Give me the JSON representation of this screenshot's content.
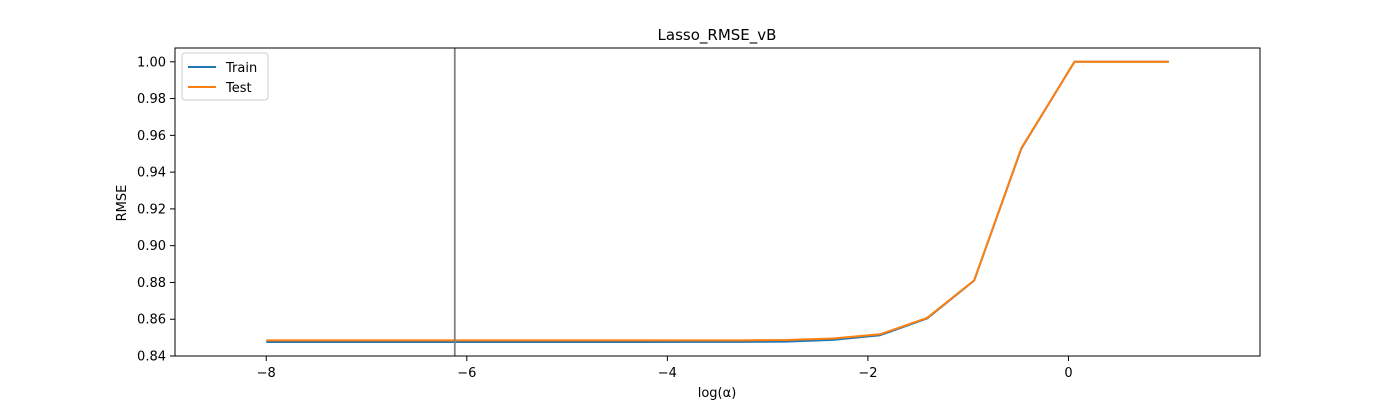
{
  "chart_data": {
    "type": "line",
    "title": "Lasso_RMSE_vB",
    "xlabel": "log(α)",
    "ylabel": "RMSE",
    "xlim": [
      -8.91,
      1.91
    ],
    "ylim": [
      0.84,
      1.0075
    ],
    "xticks": [
      -8,
      -6,
      -4,
      -2,
      0
    ],
    "xtick_labels": [
      "−8",
      "−6",
      "−4",
      "−2",
      "0"
    ],
    "yticks": [
      0.84,
      0.86,
      0.88,
      0.9,
      0.92,
      0.94,
      0.96,
      0.98,
      1.0
    ],
    "ytick_labels": [
      "0.84",
      "0.86",
      "0.88",
      "0.90",
      "0.92",
      "0.94",
      "0.96",
      "0.98",
      "1.00"
    ],
    "grid": false,
    "legend_position": "top-left",
    "vline": {
      "x": -6.12,
      "color": "#808080"
    },
    "x": [
      -8.0,
      -7.53,
      -7.06,
      -6.59,
      -6.12,
      -5.65,
      -5.18,
      -4.71,
      -4.24,
      -3.77,
      -3.29,
      -2.82,
      -2.35,
      -1.88,
      -1.41,
      -0.94,
      -0.47,
      0.06,
      1.0
    ],
    "series": [
      {
        "name": "Train",
        "color": "#1f77b4",
        "values": [
          0.8476,
          0.8476,
          0.8476,
          0.8476,
          0.8476,
          0.8476,
          0.8476,
          0.8476,
          0.8476,
          0.8477,
          0.8477,
          0.8478,
          0.8488,
          0.8513,
          0.8604,
          0.8811,
          0.9528,
          1.0,
          1.0
        ]
      },
      {
        "name": "Test",
        "color": "#ff7f0e",
        "values": [
          0.8485,
          0.8485,
          0.8485,
          0.8485,
          0.8485,
          0.8485,
          0.8485,
          0.8485,
          0.8485,
          0.8485,
          0.8485,
          0.8487,
          0.8495,
          0.8518,
          0.8607,
          0.8812,
          0.953,
          1.0,
          1.0
        ]
      }
    ]
  }
}
